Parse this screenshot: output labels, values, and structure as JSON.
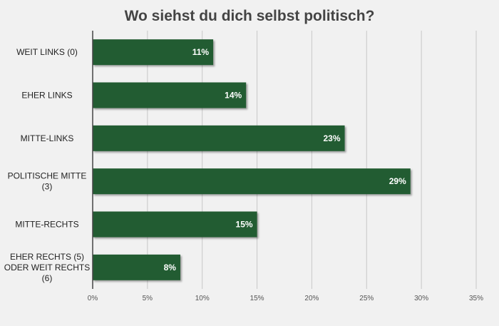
{
  "chart_data": {
    "type": "bar",
    "orientation": "horizontal",
    "title": "Wo siehst du dich selbst politisch?",
    "categories": [
      "WEIT LINKS (0)",
      "EHER LINKS",
      "MITTE-LINKS",
      "POLITISCHE MITTE (3)",
      "MITTE-RECHTS",
      "EHER RECHTS (5) ODER WEIT RECHTS (6)"
    ],
    "values": [
      11,
      14,
      23,
      29,
      15,
      8
    ],
    "value_labels": [
      "11%",
      "14%",
      "23%",
      "29%",
      "15%",
      "8%"
    ],
    "x_ticks": [
      "0%",
      "5%",
      "10%",
      "15%",
      "20%",
      "25%",
      "30%",
      "35%"
    ],
    "xlim": [
      0,
      35
    ],
    "grid": true,
    "bar_color": "#245b30",
    "colors": {
      "background": "#f1f1f1",
      "grid": "#c8c8c8",
      "axis": "#444444"
    }
  }
}
